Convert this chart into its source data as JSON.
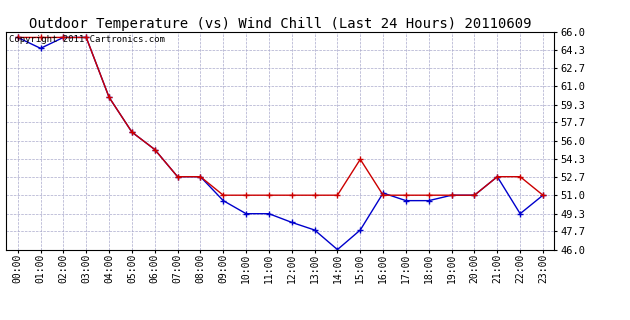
{
  "title": "Outdoor Temperature (vs) Wind Chill (Last 24 Hours) 20110609",
  "copyright_text": "Copyright 2011 Cartronics.com",
  "x_labels": [
    "00:00",
    "01:00",
    "02:00",
    "03:00",
    "04:00",
    "05:00",
    "06:00",
    "07:00",
    "08:00",
    "09:00",
    "10:00",
    "11:00",
    "12:00",
    "13:00",
    "14:00",
    "15:00",
    "16:00",
    "17:00",
    "18:00",
    "19:00",
    "20:00",
    "21:00",
    "22:00",
    "23:00"
  ],
  "temp_red": [
    65.5,
    65.5,
    65.5,
    65.5,
    60.0,
    56.8,
    55.2,
    52.7,
    52.7,
    51.0,
    51.0,
    51.0,
    51.0,
    51.0,
    51.0,
    54.3,
    51.0,
    51.0,
    51.0,
    51.0,
    51.0,
    52.7,
    52.7,
    51.0
  ],
  "wind_blue": [
    65.5,
    64.5,
    65.5,
    65.5,
    60.0,
    56.8,
    55.2,
    52.7,
    52.7,
    50.5,
    49.3,
    49.3,
    48.5,
    47.8,
    46.0,
    47.8,
    51.2,
    50.5,
    50.5,
    51.0,
    51.0,
    52.7,
    49.3,
    51.0
  ],
  "ylim": [
    46.0,
    66.0
  ],
  "yticks": [
    46.0,
    47.7,
    49.3,
    51.0,
    52.7,
    54.3,
    56.0,
    57.7,
    59.3,
    61.0,
    62.7,
    64.3,
    66.0
  ],
  "background_color": "#ffffff",
  "grid_color": "#aaaacc",
  "red_color": "#cc0000",
  "blue_color": "#0000cc",
  "title_fontsize": 10,
  "copyright_fontsize": 6.5,
  "tick_fontsize": 7,
  "ytick_fontsize": 7.5
}
